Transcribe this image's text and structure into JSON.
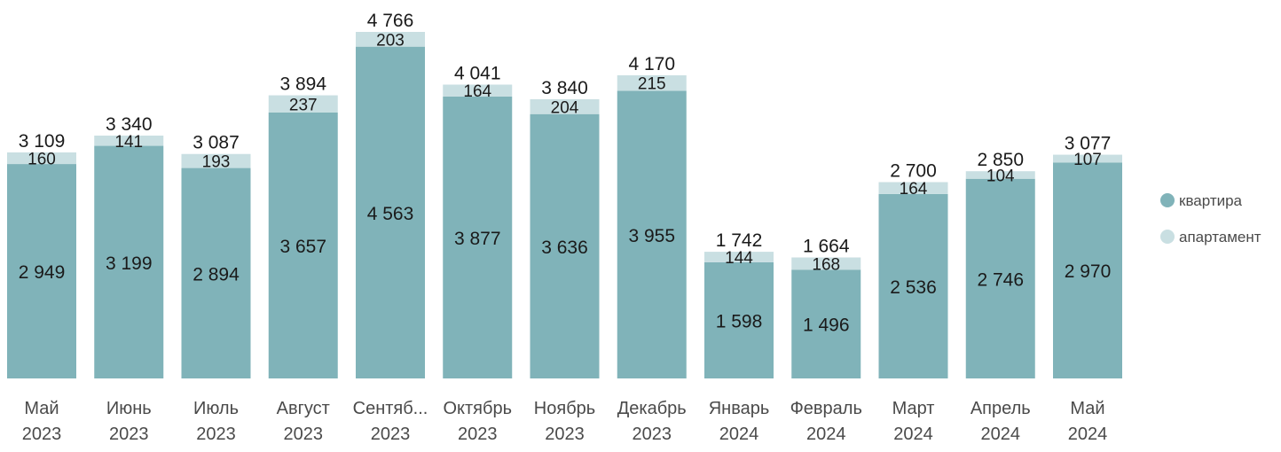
{
  "chart_data": {
    "type": "bar",
    "stacked": true,
    "categories": [
      [
        "Май",
        "2023"
      ],
      [
        "Июнь",
        "2023"
      ],
      [
        "Июль",
        "2023"
      ],
      [
        "Август",
        "2023"
      ],
      [
        "Сентяб...",
        "2023"
      ],
      [
        "Октябрь",
        "2023"
      ],
      [
        "Ноябрь",
        "2023"
      ],
      [
        "Декабрь",
        "2023"
      ],
      [
        "Январь",
        "2024"
      ],
      [
        "Февраль",
        "2024"
      ],
      [
        "Март",
        "2024"
      ],
      [
        "Апрель",
        "2024"
      ],
      [
        "Май",
        "2024"
      ]
    ],
    "series": [
      {
        "name": "квартира",
        "color": "#80b3b9",
        "values": [
          2949,
          3199,
          2894,
          3657,
          4563,
          3877,
          3636,
          3955,
          1598,
          1496,
          2536,
          2746,
          2970
        ],
        "labels": [
          "2 949",
          "3 199",
          "2 894",
          "3 657",
          "4 563",
          "3 877",
          "3 636",
          "3 955",
          "1 598",
          "1 496",
          "2 536",
          "2 746",
          "2 970"
        ]
      },
      {
        "name": "апартамент",
        "color": "#c9dfe2",
        "values": [
          160,
          141,
          193,
          237,
          203,
          164,
          204,
          215,
          144,
          168,
          164,
          104,
          107
        ],
        "labels": [
          "160",
          "141",
          "193",
          "237",
          "203",
          "164",
          "204",
          "215",
          "144",
          "168",
          "164",
          "104",
          "107"
        ]
      }
    ],
    "totals": [
      3109,
      3340,
      3087,
      3894,
      4766,
      4041,
      3840,
      4170,
      1742,
      1664,
      2700,
      2850,
      3077
    ],
    "total_labels": [
      "3 109",
      "3 340",
      "3 087",
      "3 894",
      "4 766",
      "4 041",
      "3 840",
      "4 170",
      "1 742",
      "1 664",
      "2 700",
      "2 850",
      "3 077"
    ],
    "title": "",
    "xlabel": "",
    "ylabel": "",
    "ylim": [
      0,
      4766
    ],
    "grid": false,
    "legend": "right"
  }
}
